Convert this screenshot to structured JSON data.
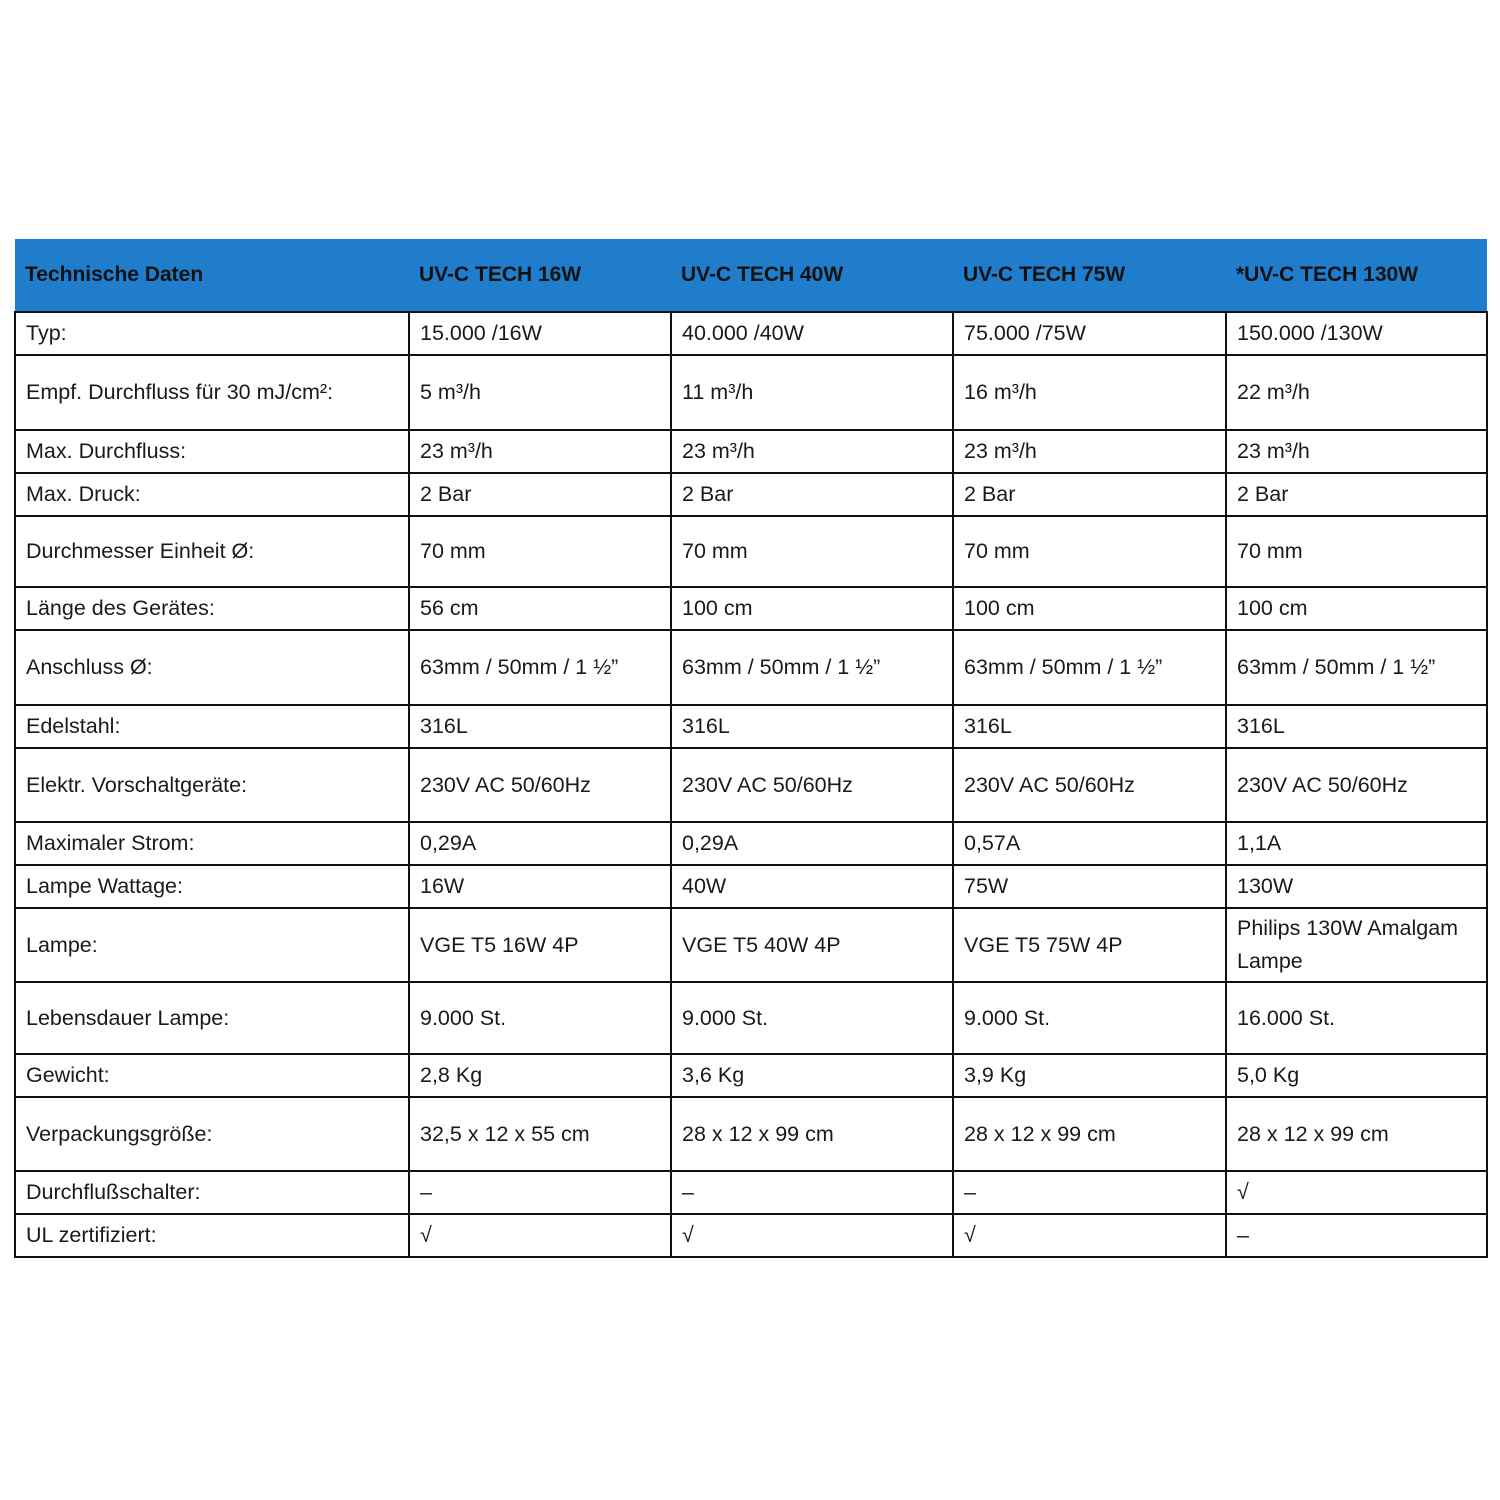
{
  "table": {
    "headers": [
      "Technische Daten",
      "UV-C TECH 16W",
      "UV-C TECH 40W",
      "UV-C TECH 75W",
      "*UV-C TECH 130W"
    ],
    "header_color": "#1f7dcb",
    "rows": [
      [
        "Typ:",
        "15.000 /16W",
        "40.000 /40W",
        "75.000 /75W",
        "150.000 /130W"
      ],
      [
        "Empf. Durchfluss für 30 mJ/cm²:",
        "5 m³/h",
        "11 m³/h",
        "16 m³/h",
        "22 m³/h"
      ],
      [
        "Max. Durchfluss:",
        "23 m³/h",
        "23 m³/h",
        "23 m³/h",
        "23 m³/h"
      ],
      [
        "Max. Druck:",
        "2 Bar",
        "2 Bar",
        "2 Bar",
        "2 Bar"
      ],
      [
        "Durchmesser Einheit Ø:",
        "70 mm",
        "70 mm",
        "70 mm",
        "70 mm"
      ],
      [
        "Länge des Gerätes:",
        "56 cm",
        "100 cm",
        "100 cm",
        "100 cm"
      ],
      [
        "Anschluss Ø:",
        "63mm / 50mm / 1 ½”",
        "63mm / 50mm / 1 ½”",
        "63mm / 50mm / 1 ½”",
        "63mm / 50mm / 1 ½”"
      ],
      [
        "Edelstahl:",
        "316L",
        "316L",
        "316L",
        "316L"
      ],
      [
        "Elektr. Vorschaltgeräte:",
        "230V AC 50/60Hz",
        "230V AC 50/60Hz",
        "230V AC 50/60Hz",
        "230V AC 50/60Hz"
      ],
      [
        "Maximaler Strom:",
        "0,29A",
        "0,29A",
        "0,57A",
        "1,1A"
      ],
      [
        "Lampe Wattage:",
        "16W",
        "40W",
        "75W",
        "130W"
      ],
      [
        "Lampe:",
        "VGE T5 16W 4P",
        "VGE T5 40W 4P",
        "VGE T5 75W 4P",
        "Philips 130W Amalgam Lampe"
      ],
      [
        "Lebensdauer Lampe:",
        "9.000 St.",
        "9.000 St.",
        "9.000 St.",
        "16.000 St."
      ],
      [
        "Gewicht:",
        "2,8 Kg",
        "3,6 Kg",
        "3,9 Kg",
        "5,0 Kg"
      ],
      [
        "Verpackungsgröße:",
        "32,5 x 12 x 55 cm",
        "28 x 12 x 99 cm",
        "28 x 12 x 99 cm",
        "28 x 12 x 99 cm"
      ],
      [
        "Durchflußschalter:",
        "–",
        "–",
        "–",
        "√"
      ],
      [
        "UL zertifiziert:",
        "√",
        "√",
        "√",
        "–"
      ]
    ]
  }
}
